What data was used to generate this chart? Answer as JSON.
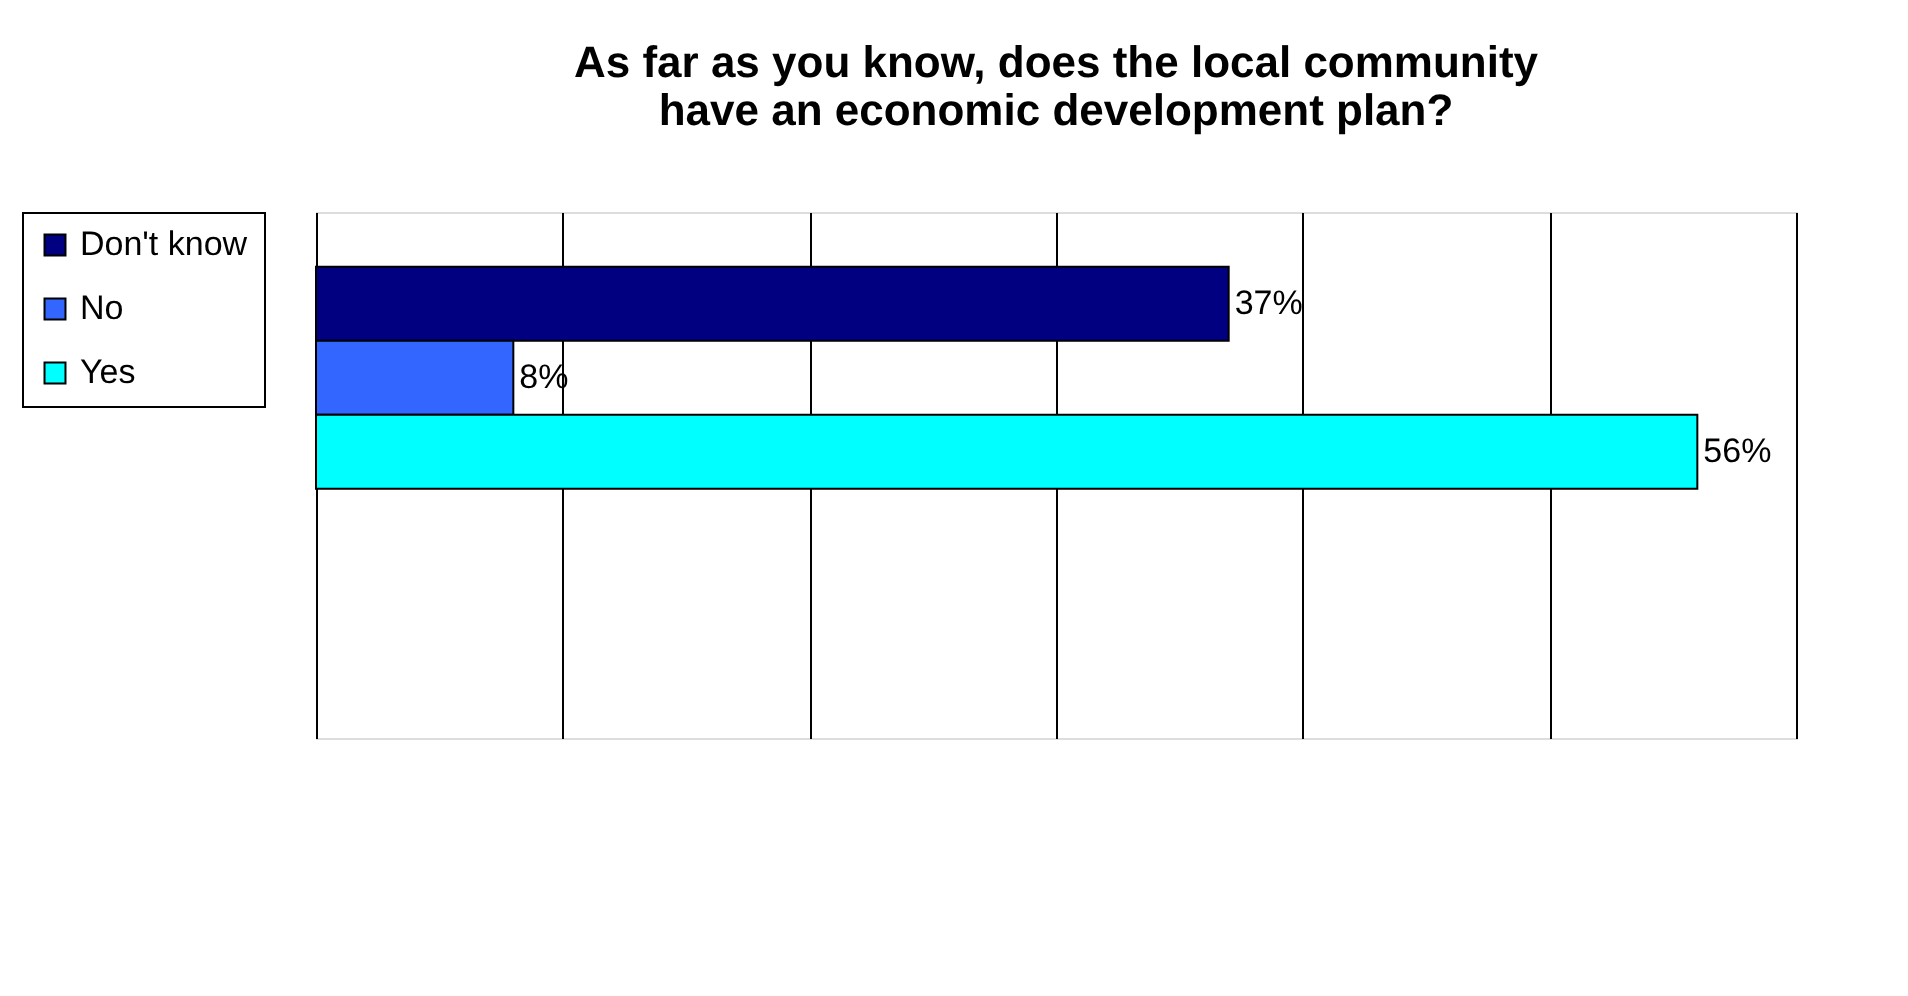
{
  "chart_data": {
    "type": "bar",
    "orientation": "horizontal",
    "title": [
      "As far as you know, does the local community",
      "have an economic development plan?"
    ],
    "categories": [
      null
    ],
    "series": [
      {
        "name": "Don't know",
        "color": "#000080",
        "values": [
          37
        ],
        "value_labels": [
          "37%"
        ]
      },
      {
        "name": "No",
        "color": "#3366ff",
        "values": [
          8
        ],
        "value_labels": [
          "8%"
        ]
      },
      {
        "name": "Yes",
        "color": "#00ffff",
        "values": [
          56
        ],
        "value_labels": [
          "56%"
        ]
      }
    ],
    "xlim": [
      0,
      60
    ],
    "xticks": [
      {
        "value": 0,
        "label": null
      },
      {
        "value": 10,
        "label": null
      },
      {
        "value": 20,
        "label": null
      },
      {
        "value": 30,
        "label": null
      },
      {
        "value": 40,
        "label": null
      },
      {
        "value": 50,
        "label": null
      },
      {
        "value": 60,
        "label": null
      }
    ],
    "tick_labels": false,
    "grid": "x",
    "legend": "left"
  }
}
